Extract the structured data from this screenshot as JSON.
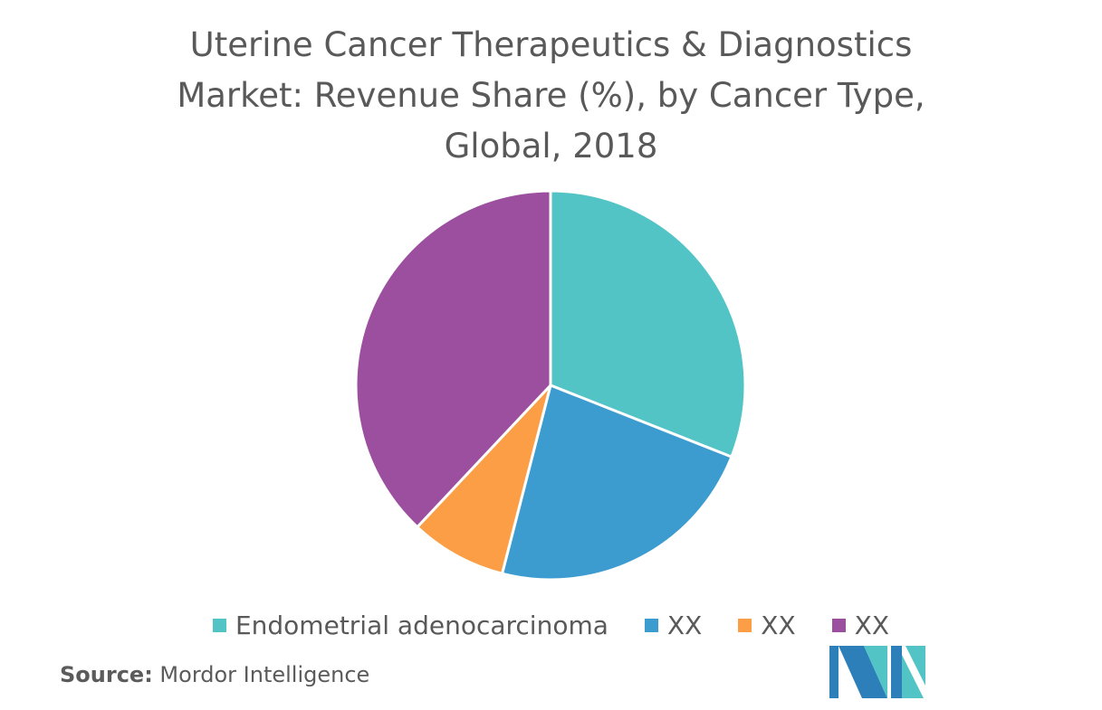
{
  "chart_data": {
    "type": "pie",
    "title_lines": [
      "Uterine Cancer Therapeutics & Diagnostics",
      "Market: Revenue Share (%), by Cancer Type,",
      "Global, 2018"
    ],
    "categories": [
      "Endometrial adenocarcinoma",
      "XX",
      "XX",
      "XX"
    ],
    "values": [
      31,
      23,
      8,
      38
    ],
    "unit": "%",
    "colors": [
      "#52c4c6",
      "#3d9ccf",
      "#fb9e45",
      "#9c4f9e"
    ],
    "legend_position": "bottom",
    "start_angle": "12 o'clock",
    "direction": "clockwise"
  },
  "source": {
    "label": "Source:",
    "text": " Mordor Intelligence"
  },
  "logo": {
    "icon": "mordor-intelligence-logo",
    "colors": [
      "#2c7fb8",
      "#52c4c6"
    ]
  }
}
